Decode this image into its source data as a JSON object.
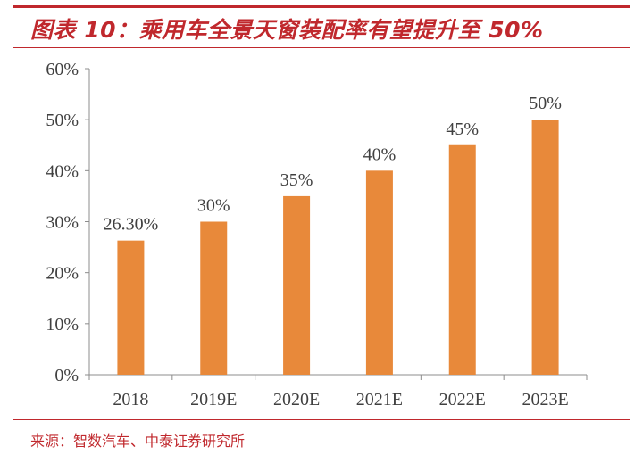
{
  "header": {
    "title": "图表 10：乘用车全景天窗装配率有望提升至 50%"
  },
  "footer": {
    "source": "来源：智数汽车、中泰证券研究所"
  },
  "colors": {
    "accent": "#c0282d",
    "bar": "#e8893a",
    "axis": "#8c8c8c",
    "text": "#404040"
  },
  "chart_data": {
    "type": "bar",
    "title": "",
    "xlabel": "",
    "ylabel": "",
    "categories": [
      "2018",
      "2019E",
      "2020E",
      "2021E",
      "2022E",
      "2023E"
    ],
    "values": [
      26.3,
      30,
      35,
      40,
      45,
      50
    ],
    "value_labels": [
      "26.30%",
      "30%",
      "35%",
      "40%",
      "45%",
      "50%"
    ],
    "ylim": [
      0,
      60
    ],
    "yticks": [
      0,
      10,
      20,
      30,
      40,
      50,
      60
    ],
    "ytick_labels": [
      "0%",
      "10%",
      "20%",
      "30%",
      "40%",
      "50%",
      "60%"
    ],
    "grid": false,
    "legend": "none"
  }
}
